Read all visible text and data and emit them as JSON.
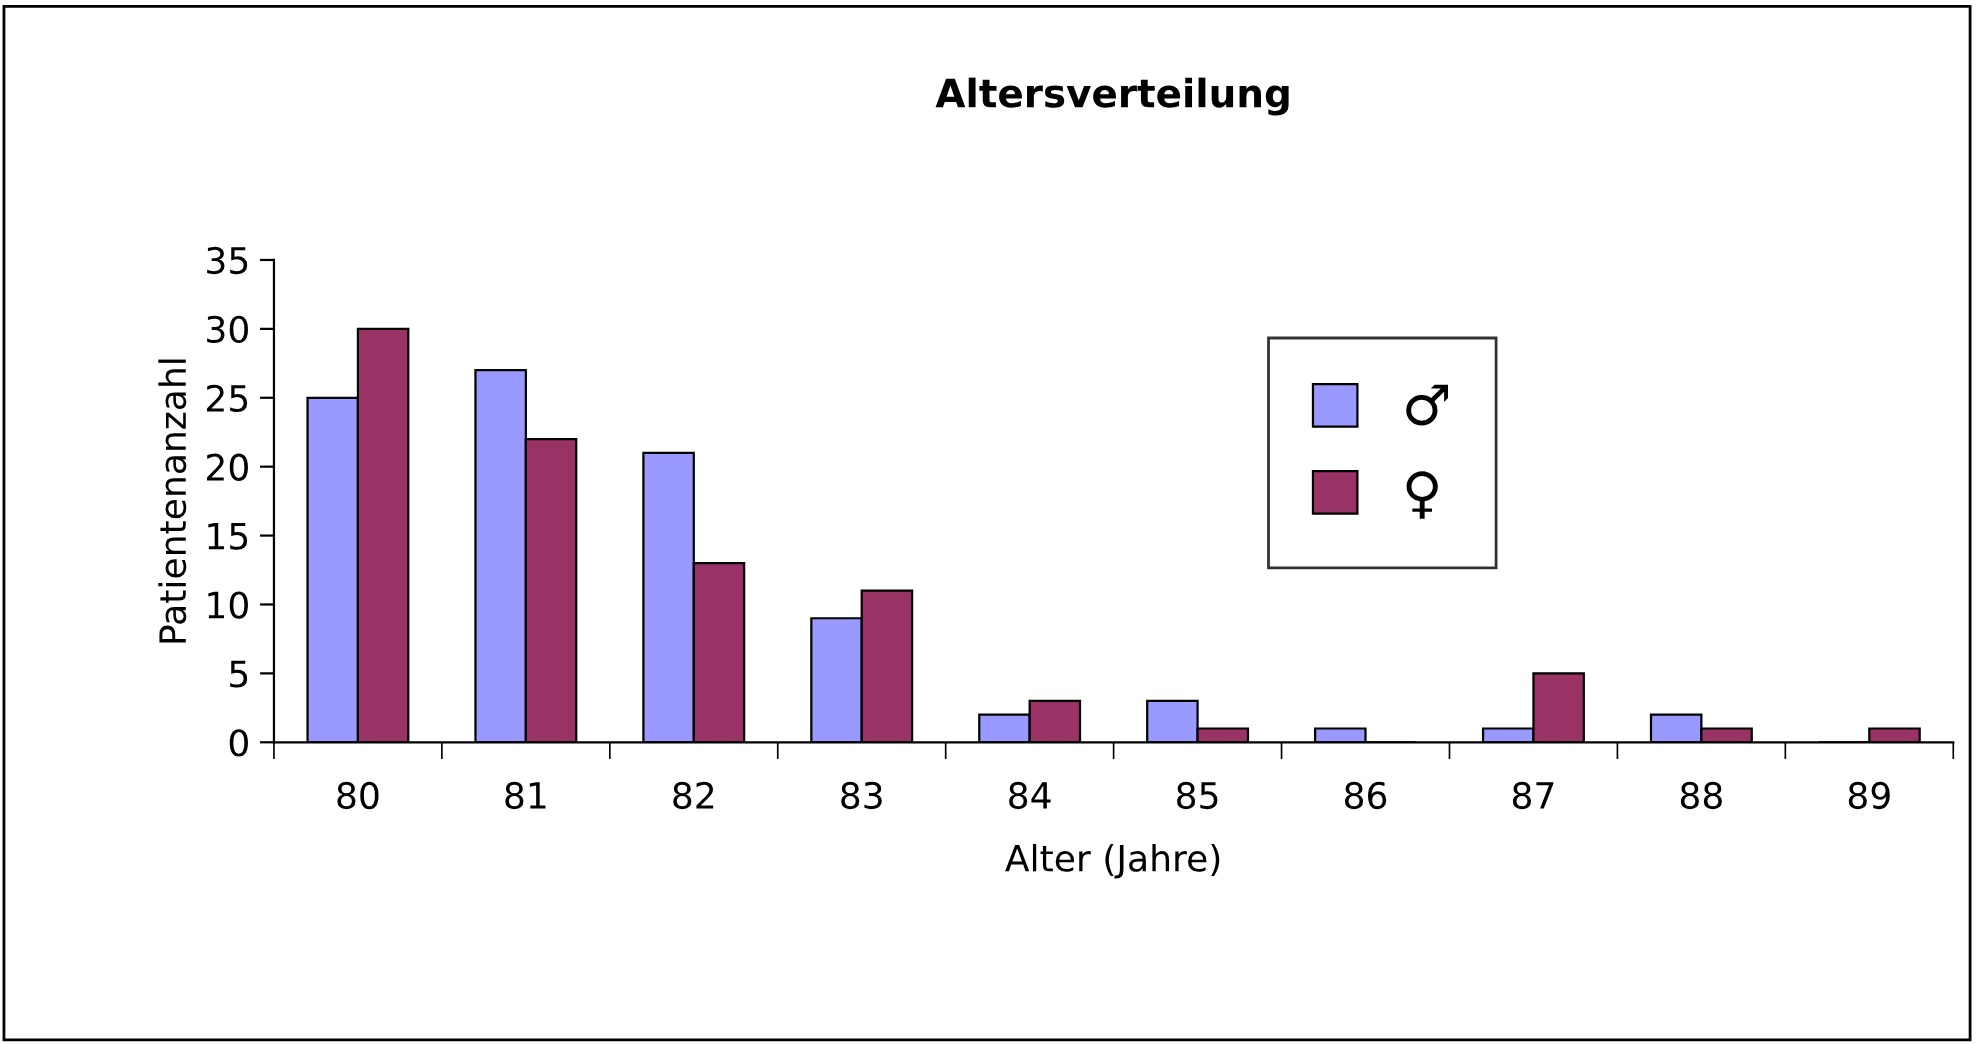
{
  "chart_data": {
    "type": "bar",
    "title": "Altersverteilung",
    "xlabel": "Alter (Jahre)",
    "ylabel": "Patientenanzahl",
    "categories": [
      "80",
      "81",
      "82",
      "83",
      "84",
      "85",
      "86",
      "87",
      "88",
      "89"
    ],
    "series": [
      {
        "name": "♂",
        "color": "#9999ff",
        "values": [
          25,
          27,
          21,
          9,
          2,
          3,
          1,
          1,
          2,
          0
        ]
      },
      {
        "name": "♀",
        "color": "#993366",
        "values": [
          30,
          22,
          13,
          11,
          3,
          1,
          0,
          5,
          1,
          1
        ]
      }
    ],
    "ylim": [
      0,
      35
    ],
    "yticks": [
      0,
      5,
      10,
      15,
      20,
      25,
      30,
      35
    ],
    "grid": false,
    "legend": "right"
  }
}
